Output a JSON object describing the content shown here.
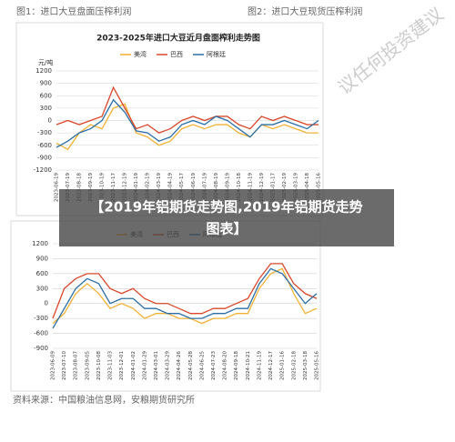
{
  "header": {
    "left": "图1：进口大豆盘面压榨利润",
    "right": "图2：进口大豆现货压榨利润"
  },
  "watermark": "议任何投资建议",
  "overlay": {
    "line1": "【2019年铝期货走势图,2019年铝期货走势",
    "line2": "图表】"
  },
  "footer": "资料来源：中国粮油信息网，安粮期货研究所",
  "chart_data": [
    {
      "type": "line",
      "title": "2023-2025年进口大豆近月盘面榨利走势图",
      "y_label": "元/吨",
      "categories": [
        "2023-06-19",
        "2023-07-19",
        "2023-08-18",
        "2023-09-19",
        "2023-10-19",
        "2023-11-17",
        "2023-12-19",
        "2024-01-19",
        "2024-02-19",
        "2024-03-19",
        "2024-04-19",
        "2024-05-17",
        "2024-06-19",
        "2024-07-19",
        "2024-08-19",
        "2024-09-19",
        "2024-10-18",
        "2024-11-19",
        "2024-12-19",
        "2025-01-17",
        "2025-02-19",
        "2025-03-19",
        "2025-04-18",
        "2025-05-16"
      ],
      "series": [
        {
          "name": "美湾",
          "color": "#f2b134",
          "values": [
            -550,
            -700,
            -300,
            -100,
            -200,
            300,
            400,
            -300,
            -400,
            -600,
            -500,
            -200,
            -100,
            -200,
            -100,
            -100,
            -300,
            -400,
            -100,
            -200,
            -100,
            -200,
            -300,
            -300
          ]
        },
        {
          "name": "巴西",
          "color": "#d9482b",
          "values": [
            -100,
            0,
            -100,
            0,
            100,
            800,
            300,
            -200,
            -100,
            -300,
            -200,
            0,
            100,
            0,
            100,
            100,
            -100,
            -200,
            100,
            0,
            100,
            0,
            -100,
            -100
          ]
        },
        {
          "name": "阿根廷",
          "color": "#2b6ea6",
          "values": [
            -650,
            -500,
            -300,
            -200,
            0,
            500,
            200,
            -250,
            -300,
            -500,
            -400,
            -100,
            0,
            -100,
            100,
            0,
            -200,
            -400,
            -100,
            -100,
            0,
            -100,
            -200,
            0
          ]
        }
      ],
      "ylim": [
        -1200,
        1200
      ],
      "yticks": [
        1200,
        900,
        600,
        300,
        0,
        -300,
        -600,
        -900,
        -1200
      ],
      "grid": true
    },
    {
      "type": "line",
      "categories": [
        "2023-06-09",
        "2023-07-10",
        "2023-08-07",
        "2023-09-05",
        "2023-10-08",
        "2023-11-03",
        "2023-12-01",
        "2024-01-02",
        "2024-01-29",
        "2024-03-01",
        "2024-03-29",
        "2024-04-26",
        "2024-05-28",
        "2024-06-25",
        "2024-07-23",
        "2024-08-20",
        "2024-09-18",
        "2024-10-21",
        "2024-11-19",
        "2024-12-17",
        "2025-01-16",
        "2025-02-18",
        "2025-03-18",
        "2025-05-16"
      ],
      "series": [
        {
          "name": "美湾",
          "color": "#f2b134",
          "values": [
            -400,
            -200,
            200,
            400,
            200,
            -100,
            0,
            -100,
            -300,
            -200,
            -200,
            -300,
            -300,
            -400,
            -300,
            -300,
            -200,
            -200,
            300,
            600,
            700,
            200,
            -200,
            -100
          ]
        },
        {
          "name": "巴西",
          "color": "#d9482b",
          "values": [
            -300,
            300,
            500,
            600,
            600,
            300,
            200,
            300,
            100,
            0,
            0,
            -100,
            -200,
            -200,
            -100,
            -100,
            0,
            100,
            500,
            800,
            800,
            400,
            200,
            100
          ]
        },
        {
          "name": "阿根廷",
          "color": "#2b6ea6",
          "values": [
            -500,
            -100,
            300,
            500,
            400,
            0,
            100,
            100,
            -100,
            -100,
            -200,
            -200,
            -300,
            -300,
            -200,
            -200,
            -100,
            -100,
            400,
            700,
            600,
            300,
            0,
            200
          ]
        }
      ],
      "ylim": [
        -900,
        1200
      ],
      "yticks": [
        1200,
        900,
        600,
        300,
        0,
        -300,
        -600,
        -900
      ],
      "grid": true
    }
  ]
}
